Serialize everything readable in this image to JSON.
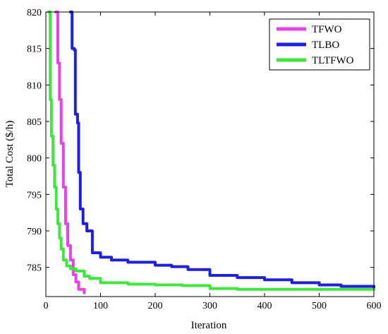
{
  "chart_data": {
    "type": "line",
    "xlabel": "Iteration",
    "ylabel": "Total Cost ($/h)",
    "xlim": [
      0,
      600
    ],
    "ylim": [
      781,
      820
    ],
    "xticks": [
      0,
      100,
      200,
      300,
      400,
      500,
      600
    ],
    "yticks": [
      785,
      790,
      795,
      800,
      805,
      810,
      815,
      820
    ],
    "grid": false,
    "legend_position": "top-right",
    "series": [
      {
        "name": "TFWO",
        "color": "#e642e6",
        "points": [
          [
            18,
            820
          ],
          [
            22,
            813
          ],
          [
            25,
            808
          ],
          [
            28,
            802
          ],
          [
            32,
            796
          ],
          [
            36,
            791
          ],
          [
            40,
            788
          ],
          [
            45,
            786
          ],
          [
            50,
            784
          ],
          [
            55,
            783
          ],
          [
            60,
            782
          ],
          [
            70,
            781.5
          ]
        ]
      },
      {
        "name": "TLBO",
        "color": "#1f1fe0",
        "points": [
          [
            45,
            820
          ],
          [
            48,
            815
          ],
          [
            52,
            814.8
          ],
          [
            54,
            806
          ],
          [
            58,
            804.8
          ],
          [
            60,
            798
          ],
          [
            63,
            793
          ],
          [
            68,
            791
          ],
          [
            75,
            790
          ],
          [
            85,
            787
          ],
          [
            100,
            786.4
          ],
          [
            120,
            786
          ],
          [
            150,
            785.7
          ],
          [
            200,
            785.3
          ],
          [
            230,
            785.1
          ],
          [
            260,
            784.7
          ],
          [
            300,
            783.9
          ],
          [
            350,
            783.6
          ],
          [
            400,
            783.3
          ],
          [
            450,
            782.9
          ],
          [
            500,
            782.6
          ],
          [
            540,
            782.4
          ],
          [
            600,
            782.3
          ]
        ]
      },
      {
        "name": "TLTFWO",
        "color": "#3ee63e",
        "points": [
          [
            5,
            820
          ],
          [
            8,
            808
          ],
          [
            10,
            803
          ],
          [
            13,
            799
          ],
          [
            16,
            796
          ],
          [
            19,
            793
          ],
          [
            22,
            791
          ],
          [
            25,
            789
          ],
          [
            28,
            787.5
          ],
          [
            32,
            786
          ],
          [
            38,
            785.2
          ],
          [
            45,
            784.8
          ],
          [
            55,
            784.5
          ],
          [
            70,
            783.8
          ],
          [
            80,
            783.5
          ],
          [
            100,
            782.9
          ],
          [
            150,
            782.7
          ],
          [
            200,
            782.6
          ],
          [
            250,
            782.5
          ],
          [
            300,
            782.1
          ],
          [
            350,
            782
          ],
          [
            400,
            782
          ],
          [
            500,
            782
          ],
          [
            600,
            782
          ]
        ]
      }
    ]
  }
}
